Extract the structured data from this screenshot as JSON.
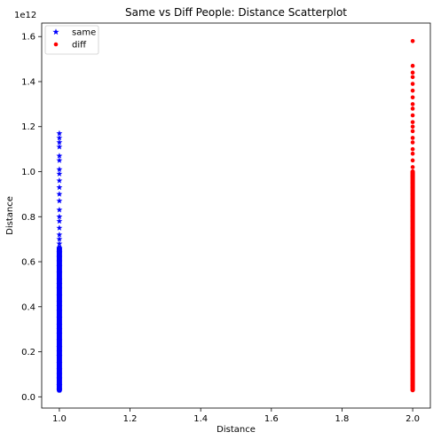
{
  "chart_data": {
    "type": "scatter",
    "title": "Same vs Diff People: Distance Scatterplot",
    "xlabel": "Distance",
    "ylabel": "Distance",
    "y_offset_label": "1e12",
    "xlim": [
      0.95,
      2.05
    ],
    "ylim": [
      -0.05,
      1.66
    ],
    "xticks": [
      1.0,
      1.2,
      1.4,
      1.6,
      1.8,
      2.0
    ],
    "xtick_labels": [
      "1.0",
      "1.2",
      "1.4",
      "1.6",
      "1.8",
      "2.0"
    ],
    "yticks": [
      0.0,
      0.2,
      0.4,
      0.6,
      0.8,
      1.0,
      1.2,
      1.4,
      1.6
    ],
    "ytick_labels": [
      "0.0",
      "0.2",
      "0.4",
      "0.6",
      "0.8",
      "1.0",
      "1.2",
      "1.4",
      "1.6"
    ],
    "grid": false,
    "legend_position": "top-left",
    "series": [
      {
        "name": "same",
        "color": "#0000ff",
        "marker": "star",
        "x": 1.0,
        "y": [
          0.03,
          0.05,
          0.08,
          0.1,
          0.12,
          0.15,
          0.18,
          0.2,
          0.22,
          0.25,
          0.28,
          0.3,
          0.32,
          0.35,
          0.38,
          0.4,
          0.42,
          0.45,
          0.48,
          0.5,
          0.52,
          0.55,
          0.58,
          0.6,
          0.62,
          0.64,
          0.66,
          0.68,
          0.7,
          0.72,
          0.75,
          0.78,
          0.8,
          0.83,
          0.87,
          0.9,
          0.93,
          0.96,
          0.99,
          1.01,
          1.05,
          1.07,
          1.11,
          1.13,
          1.15,
          1.17
        ]
      },
      {
        "name": "diff",
        "color": "#ff0000",
        "marker": "dot",
        "x": 2.0,
        "y": [
          0.03,
          0.05,
          0.08,
          0.1,
          0.12,
          0.15,
          0.18,
          0.2,
          0.22,
          0.25,
          0.28,
          0.3,
          0.32,
          0.35,
          0.38,
          0.4,
          0.42,
          0.45,
          0.48,
          0.5,
          0.52,
          0.55,
          0.58,
          0.6,
          0.62,
          0.65,
          0.68,
          0.7,
          0.72,
          0.75,
          0.78,
          0.8,
          0.83,
          0.85,
          0.88,
          0.9,
          0.93,
          0.95,
          0.98,
          1.0,
          1.02,
          1.05,
          1.08,
          1.1,
          1.13,
          1.15,
          1.18,
          1.2,
          1.22,
          1.25,
          1.28,
          1.3,
          1.33,
          1.36,
          1.39,
          1.42,
          1.44,
          1.47,
          1.58
        ]
      }
    ]
  }
}
